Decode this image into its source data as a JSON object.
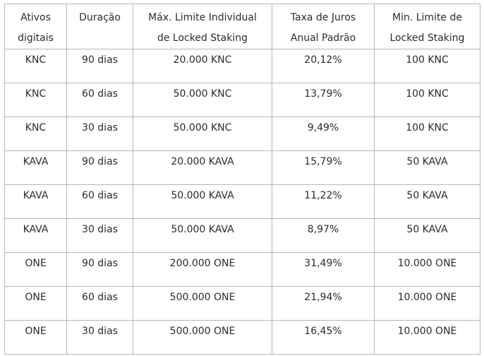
{
  "table": {
    "headers": [
      [
        "Ativos",
        "digitais"
      ],
      [
        "Duração"
      ],
      [
        "Máx. Limite Individual",
        "de Locked Staking"
      ],
      [
        "Taxa de Juros",
        "Anual Padrão"
      ],
      [
        "Min. Limite de",
        "Locked Staking"
      ]
    ],
    "rows": [
      [
        "KNC",
        "90 dias",
        "20.000 KNC",
        "20,12%",
        "100 KNC"
      ],
      [
        "KNC",
        "60 dias",
        "50.000 KNC",
        "13,79%",
        "100 KNC"
      ],
      [
        "KNC",
        "30 dias",
        "50.000 KNC",
        "9,49%",
        "100 KNC"
      ],
      [
        "KAVA",
        "90 dias",
        "20.000 KAVA",
        "15,79%",
        "50 KAVA"
      ],
      [
        "KAVA",
        "60 dias",
        "50.000 KAVA",
        "11,22%",
        "50 KAVA"
      ],
      [
        "KAVA",
        "30 dias",
        "50.000 KAVA",
        "8,97%",
        "50 KAVA"
      ],
      [
        "ONE",
        "90 dias",
        "200.000 ONE",
        "31,49%",
        "10.000 ONE"
      ],
      [
        "ONE",
        "60 dias",
        "500.000 ONE",
        "21,94%",
        "10.000 ONE"
      ],
      [
        "ONE",
        "30 dias",
        "500.000 ONE",
        "16,45%",
        "10.000 ONE"
      ]
    ]
  }
}
